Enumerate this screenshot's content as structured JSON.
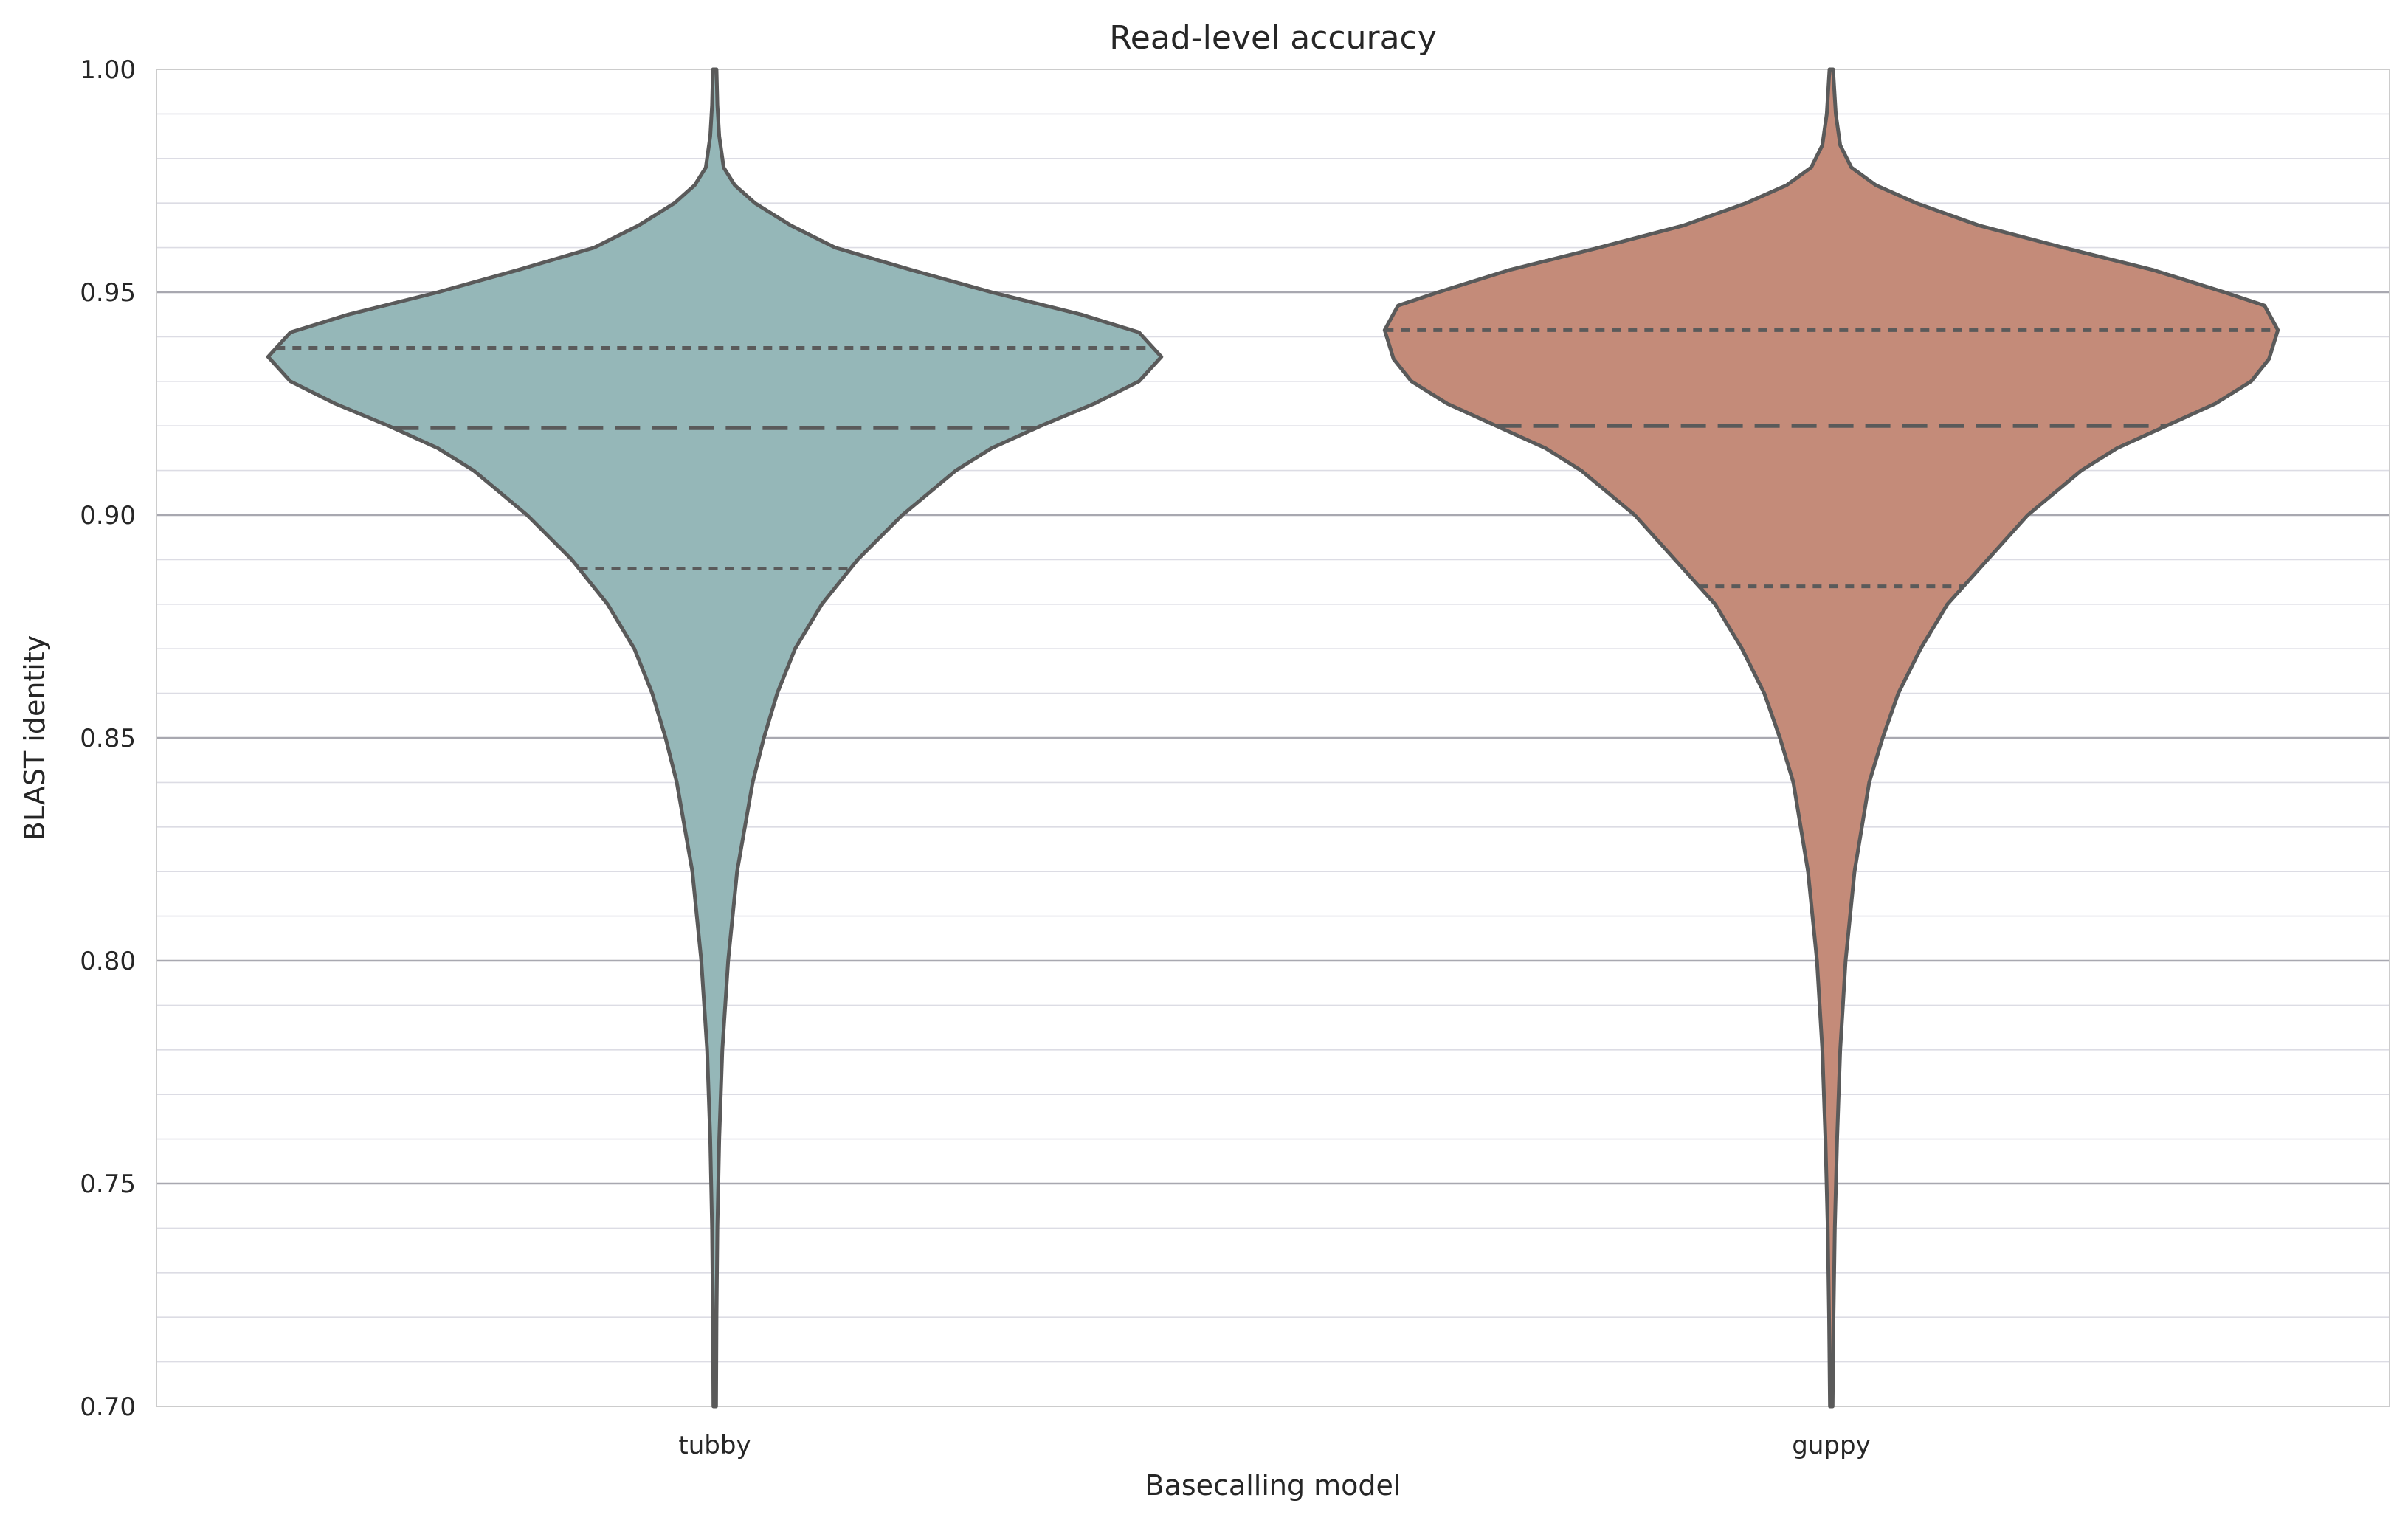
{
  "chart_data": {
    "type": "violin",
    "title": "Read-level accuracy",
    "xlabel": "Basecalling model",
    "ylabel": "BLAST identity",
    "ylim": [
      0.7,
      1.0
    ],
    "yticks": [
      "0.70",
      "0.75",
      "0.80",
      "0.85",
      "0.90",
      "0.95",
      "1.00"
    ],
    "grid": true,
    "categories": [
      "tubby",
      "guppy"
    ],
    "series": [
      {
        "category": "tubby",
        "color": "#95b7b8",
        "quartiles": {
          "q1": 0.888,
          "median": 0.9195,
          "q3": 0.9375
        },
        "density": [
          [
            0.7,
            0.003
          ],
          [
            0.72,
            0.004
          ],
          [
            0.74,
            0.006
          ],
          [
            0.76,
            0.01
          ],
          [
            0.78,
            0.017
          ],
          [
            0.8,
            0.03
          ],
          [
            0.82,
            0.05
          ],
          [
            0.84,
            0.085
          ],
          [
            0.85,
            0.11
          ],
          [
            0.86,
            0.14
          ],
          [
            0.87,
            0.18
          ],
          [
            0.88,
            0.24
          ],
          [
            0.89,
            0.32
          ],
          [
            0.9,
            0.42
          ],
          [
            0.91,
            0.54
          ],
          [
            0.915,
            0.62
          ],
          [
            0.92,
            0.73
          ],
          [
            0.925,
            0.85
          ],
          [
            0.93,
            0.95
          ],
          [
            0.9355,
            1.0
          ],
          [
            0.941,
            0.95
          ],
          [
            0.945,
            0.82
          ],
          [
            0.95,
            0.62
          ],
          [
            0.955,
            0.44
          ],
          [
            0.96,
            0.27
          ],
          [
            0.965,
            0.17
          ],
          [
            0.97,
            0.09
          ],
          [
            0.974,
            0.045
          ],
          [
            0.978,
            0.02
          ],
          [
            0.985,
            0.01
          ],
          [
            0.992,
            0.006
          ],
          [
            1.0,
            0.004
          ]
        ]
      },
      {
        "category": "guppy",
        "color": "#c48b79",
        "quartiles": {
          "q1": 0.884,
          "median": 0.92,
          "q3": 0.9415
        },
        "density": [
          [
            0.7,
            0.003
          ],
          [
            0.72,
            0.005
          ],
          [
            0.74,
            0.008
          ],
          [
            0.76,
            0.013
          ],
          [
            0.78,
            0.02
          ],
          [
            0.8,
            0.032
          ],
          [
            0.82,
            0.052
          ],
          [
            0.84,
            0.085
          ],
          [
            0.85,
            0.115
          ],
          [
            0.86,
            0.15
          ],
          [
            0.87,
            0.2
          ],
          [
            0.88,
            0.26
          ],
          [
            0.89,
            0.35
          ],
          [
            0.9,
            0.44
          ],
          [
            0.91,
            0.56
          ],
          [
            0.915,
            0.64
          ],
          [
            0.92,
            0.75
          ],
          [
            0.925,
            0.86
          ],
          [
            0.93,
            0.94
          ],
          [
            0.935,
            0.98
          ],
          [
            0.9415,
            1.0
          ],
          [
            0.947,
            0.97
          ],
          [
            0.95,
            0.88
          ],
          [
            0.955,
            0.72
          ],
          [
            0.96,
            0.52
          ],
          [
            0.965,
            0.33
          ],
          [
            0.97,
            0.19
          ],
          [
            0.974,
            0.1
          ],
          [
            0.978,
            0.045
          ],
          [
            0.983,
            0.02
          ],
          [
            0.99,
            0.01
          ],
          [
            1.0,
            0.004
          ]
        ]
      }
    ]
  }
}
